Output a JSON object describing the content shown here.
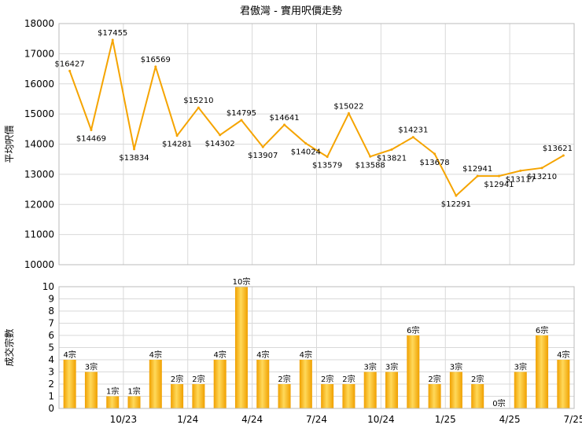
{
  "title": "君傲灣 - 實用呎價走勢",
  "colors": {
    "line": "#f5a400",
    "bar_light": "#ffd95a",
    "bar_dark": "#f0a000",
    "grid": "#d9d9d9"
  },
  "chart_data": [
    {
      "type": "line",
      "ylabel": "平均呎價",
      "ylim": [
        10000,
        18000
      ],
      "yticks": [
        10000,
        11000,
        12000,
        13000,
        14000,
        15000,
        16000,
        17000,
        18000
      ],
      "x_tick_labels": [
        "10/23",
        "1/24",
        "4/24",
        "7/24",
        "10/24",
        "1/25",
        "4/25",
        "7/25"
      ],
      "grid": true,
      "series": [
        {
          "values": [
            16427,
            14469,
            17455,
            13834,
            16569,
            14281,
            15210,
            14302,
            14795,
            13907,
            14641,
            14024,
            13579,
            15022,
            13588,
            13821,
            14231,
            13678,
            12291,
            12941,
            12941,
            13117,
            13210,
            13621
          ],
          "labels": [
            "$16427",
            "$14469",
            "$17455",
            "$13834",
            "$16569",
            "$14281",
            "$15210",
            "$14302",
            "$14795",
            "$13907",
            "$14641",
            "$14024",
            "$13579",
            "$15022",
            "$13588",
            "$13821",
            "$14231",
            "$13678",
            "$12291",
            "$12941",
            "$12941",
            "$13117",
            "$13210",
            "$13621"
          ]
        }
      ]
    },
    {
      "type": "bar",
      "ylabel": "成交宗數",
      "ylim": [
        0,
        10
      ],
      "yticks": [
        0,
        1,
        2,
        3,
        4,
        5,
        6,
        7,
        8,
        9,
        10
      ],
      "x_tick_labels": [
        "10/23",
        "1/24",
        "4/24",
        "7/24",
        "10/24",
        "1/25",
        "4/25",
        "7/25"
      ],
      "grid": true,
      "values": [
        4,
        3,
        1,
        1,
        4,
        2,
        2,
        4,
        10,
        4,
        2,
        4,
        2,
        2,
        3,
        3,
        6,
        2,
        3,
        2,
        0,
        3,
        6,
        4
      ],
      "labels": [
        "4宗",
        "3宗",
        "1宗",
        "1宗",
        "4宗",
        "2宗",
        "2宗",
        "4宗",
        "10宗",
        "4宗",
        "2宗",
        "4宗",
        "2宗",
        "2宗",
        "3宗",
        "3宗",
        "6宗",
        "2宗",
        "3宗",
        "2宗",
        "0宗",
        "3宗",
        "6宗",
        "4宗"
      ]
    }
  ]
}
